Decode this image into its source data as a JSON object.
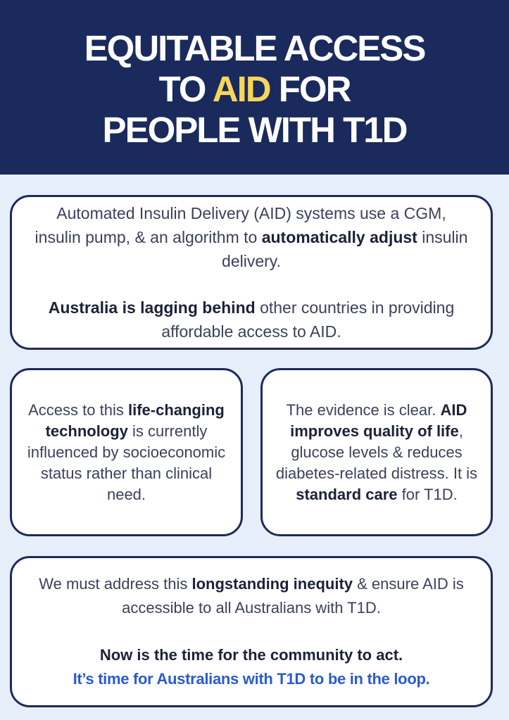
{
  "colors": {
    "header_bg": "#1A2A5C",
    "accent_yellow": "#F5D65A",
    "page_bg": "#E6EEFA",
    "card_bg": "#FFFFFF",
    "card_border": "#1D2A5C",
    "body_text": "#3A415A",
    "bold_text": "#1B2238",
    "cta_blue": "#2B5BD0"
  },
  "header": {
    "line1": "EQUITABLE ACCESS",
    "line2_pre": "TO ",
    "line2_accent": "AID",
    "line2_post": " FOR",
    "line3": "PEOPLE WITH T1D"
  },
  "intro_card": {
    "p1_a": "Automated Insulin Delivery (AID) systems use a CGM, insulin pump, & an algorithm to ",
    "p1_b": "automatically adjust",
    "p1_c": " insulin delivery.",
    "p2_a": "Australia is lagging behind",
    "p2_b": " other countries in providing affordable access to AID."
  },
  "access_card": {
    "a": "Access to this ",
    "b": "life-changing technology",
    "c": " is currently influenced by socioeconomic status rather than clinical need."
  },
  "evidence_card": {
    "a": "The evidence is clear. ",
    "b": "AID improves quality of life",
    "c": ", glucose levels & reduces diabetes-related distress. It is ",
    "d": "standard care",
    "e": " for T1D."
  },
  "action_card": {
    "p1_a": "We must address this ",
    "p1_b": "longstanding inequity",
    "p1_c": " & ensure AID is accessible to all Australians with T1D.",
    "p2": "Now is the time for the community to act.",
    "p3": "It’s time for Australians with T1D to be in the loop."
  }
}
